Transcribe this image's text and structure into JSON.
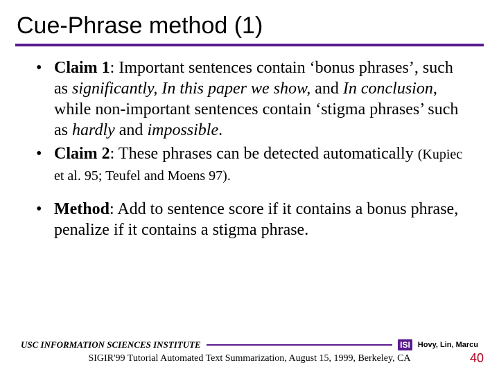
{
  "title": "Cue-Phrase method (1)",
  "colors": {
    "accent": "#5b1a8e",
    "pagenum": "#b00020",
    "text": "#000000",
    "background": "#ffffff"
  },
  "bullets": {
    "claim1": {
      "label": "Claim 1",
      "t1": ": Important sentences contain ‘bonus phrases’, such as ",
      "i1": "significantly, In this paper we show,",
      "t2": " and ",
      "i2": "In conclusion",
      "t3": ", while non-important sentences contain ‘stigma phrases’ such as ",
      "i3": "hardly",
      "t4": " and ",
      "i4": "impossible",
      "t5": "."
    },
    "claim2": {
      "label": "Claim 2",
      "t1": ": These phrases can be detected automatically ",
      "cite": "(Kupiec et al. 95; Teufel and Moens 97)."
    },
    "method": {
      "label": "Method",
      "t1": ": Add to sentence score if it contains a bonus phrase, penalize if it contains a stigma phrase."
    }
  },
  "footer": {
    "institute": "USC INFORMATION SCIENCES INSTITUTE",
    "logo": "ISI",
    "authors": "Hovy, Lin, Marcu",
    "caption": "SIGIR'99 Tutorial Automated Text Summarization, August 15, 1999, Berkeley, CA"
  },
  "page": "40",
  "typography": {
    "title_fontsize": 34,
    "body_fontsize": 24,
    "cite_fontsize": 20,
    "footer_inst_fontsize": 13,
    "footer_authors_fontsize": 11,
    "footer_caption_fontsize": 14,
    "pagenum_fontsize": 18
  }
}
